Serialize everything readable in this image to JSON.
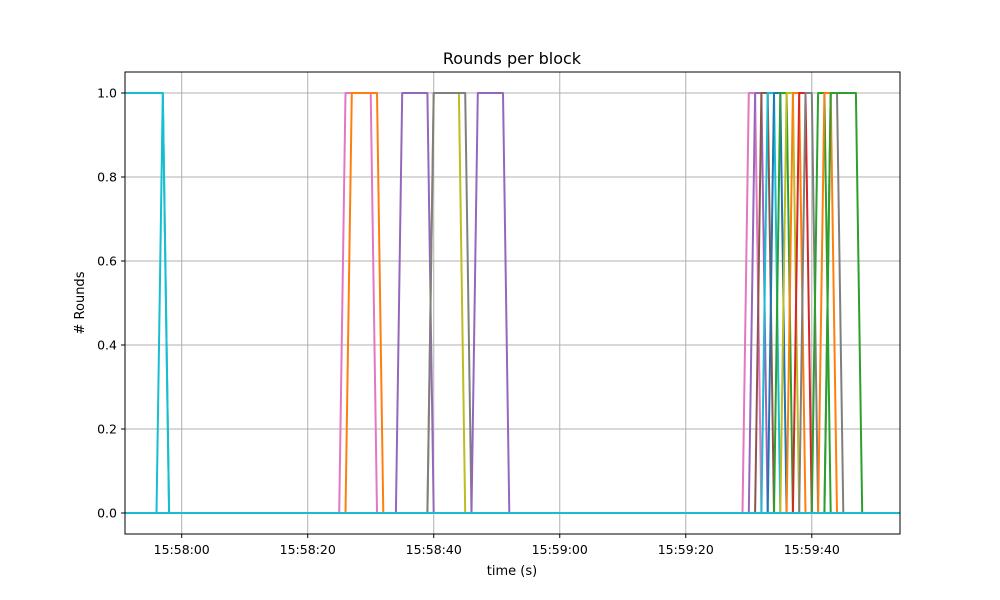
{
  "chart_data": {
    "type": "line",
    "title": "Rounds per block",
    "xlabel": "time (s)",
    "ylabel": "# Rounds",
    "x_unit": "time of day (HH:MM:SS)",
    "xlim": [
      "15:57:51",
      "15:59:54"
    ],
    "ylim": [
      -0.05,
      1.05
    ],
    "xticks": [
      "15:58:00",
      "15:58:20",
      "15:58:40",
      "15:59:00",
      "15:59:20",
      "15:59:40"
    ],
    "yticks": [
      "0.0",
      "0.2",
      "0.4",
      "0.6",
      "0.8",
      "1.0"
    ],
    "grid": true,
    "legend": "none",
    "series": [
      {
        "color": "#17becf",
        "x": [
          "15:57:51",
          "15:57:56",
          "15:57:57",
          "15:57:58",
          "15:58:01",
          "15:59:54"
        ],
        "y": [
          1,
          1,
          1,
          0,
          0,
          0
        ]
      },
      {
        "color": "#17becf",
        "x": [
          "15:57:51",
          "15:57:56",
          "15:57:57",
          "15:57:58",
          "15:59:54"
        ],
        "y": [
          0,
          0,
          1,
          0,
          0
        ]
      },
      {
        "color": "#e377c2",
        "x": [
          "15:57:51",
          "15:58:25",
          "15:58:26",
          "15:58:30",
          "15:58:31",
          "15:59:54"
        ],
        "y": [
          0,
          0,
          1,
          1,
          0,
          0
        ]
      },
      {
        "color": "#ff7f0e",
        "x": [
          "15:57:51",
          "15:58:26",
          "15:58:27",
          "15:58:31",
          "15:58:32",
          "15:59:54"
        ],
        "y": [
          0,
          0,
          1,
          1,
          0,
          0
        ]
      },
      {
        "color": "#9467bd",
        "x": [
          "15:57:51",
          "15:58:34",
          "15:58:35",
          "15:58:39",
          "15:58:40",
          "15:59:54"
        ],
        "y": [
          0,
          0,
          1,
          1,
          0,
          0
        ]
      },
      {
        "color": "#bcbd22",
        "x": [
          "15:57:51",
          "15:58:39",
          "15:58:40",
          "15:58:44",
          "15:58:45",
          "15:59:54"
        ],
        "y": [
          0,
          0,
          1,
          1,
          0,
          0
        ]
      },
      {
        "color": "#7f7f7f",
        "x": [
          "15:57:51",
          "15:58:39",
          "15:58:40",
          "15:58:45",
          "15:58:46",
          "15:59:54"
        ],
        "y": [
          0,
          0,
          1,
          1,
          0,
          0
        ]
      },
      {
        "color": "#9467bd",
        "x": [
          "15:57:51",
          "15:58:46",
          "15:58:47",
          "15:58:51",
          "15:58:52",
          "15:59:54"
        ],
        "y": [
          0,
          0,
          1,
          1,
          0,
          0
        ]
      },
      {
        "color": "#e377c2",
        "x": [
          "15:57:51",
          "15:59:29",
          "15:59:30",
          "15:59:31",
          "15:59:32",
          "15:59:54"
        ],
        "y": [
          0,
          0,
          1,
          1,
          0,
          0
        ]
      },
      {
        "color": "#9467bd",
        "x": [
          "15:57:51",
          "15:59:30",
          "15:59:31",
          "15:59:32",
          "15:59:33",
          "15:59:54"
        ],
        "y": [
          0,
          0,
          1,
          1,
          0,
          0
        ]
      },
      {
        "color": "#8c564b",
        "x": [
          "15:57:51",
          "15:59:31",
          "15:59:32",
          "15:59:33",
          "15:59:34",
          "15:59:54"
        ],
        "y": [
          0,
          0,
          1,
          1,
          0,
          0
        ]
      },
      {
        "color": "#17becf",
        "x": [
          "15:57:51",
          "15:59:32",
          "15:59:33",
          "15:59:34",
          "15:59:35",
          "15:59:54"
        ],
        "y": [
          0,
          0,
          1,
          1,
          0,
          0
        ]
      },
      {
        "color": "#1f77b4",
        "x": [
          "15:57:51",
          "15:59:33",
          "15:59:34",
          "15:59:35",
          "15:59:36",
          "15:59:54"
        ],
        "y": [
          0,
          0,
          1,
          1,
          0,
          0
        ]
      },
      {
        "color": "#2ca02c",
        "x": [
          "15:57:51",
          "15:59:34",
          "15:59:35",
          "15:59:36",
          "15:59:37",
          "15:59:54"
        ],
        "y": [
          0,
          0,
          1,
          1,
          0,
          0
        ]
      },
      {
        "color": "#bcbd22",
        "x": [
          "15:57:51",
          "15:59:35",
          "15:59:36",
          "15:59:37",
          "15:59:38",
          "15:59:54"
        ],
        "y": [
          0,
          0,
          1,
          1,
          0,
          0
        ]
      },
      {
        "color": "#ff7f0e",
        "x": [
          "15:57:51",
          "15:59:36",
          "15:59:37",
          "15:59:38",
          "15:59:39",
          "15:59:54"
        ],
        "y": [
          0,
          0,
          1,
          1,
          0,
          0
        ]
      },
      {
        "color": "#d62728",
        "x": [
          "15:57:51",
          "15:59:37",
          "15:59:38",
          "15:59:39",
          "15:59:40",
          "15:59:54"
        ],
        "y": [
          0,
          0,
          1,
          1,
          0,
          0
        ]
      },
      {
        "color": "#7f7f7f",
        "x": [
          "15:57:51",
          "15:59:38",
          "15:59:39",
          "15:59:40",
          "15:59:41",
          "15:59:54"
        ],
        "y": [
          0,
          0,
          1,
          1,
          0,
          0
        ]
      },
      {
        "color": "#2ca02c",
        "x": [
          "15:57:51",
          "15:59:40",
          "15:59:41",
          "15:59:42",
          "15:59:43",
          "15:59:54"
        ],
        "y": [
          0,
          0,
          1,
          1,
          0,
          0
        ]
      },
      {
        "color": "#ff7f0e",
        "x": [
          "15:57:51",
          "15:59:41",
          "15:59:42",
          "15:59:43",
          "15:59:44",
          "15:59:54"
        ],
        "y": [
          0,
          0,
          1,
          1,
          0,
          0
        ]
      },
      {
        "color": "#7f7f7f",
        "x": [
          "15:57:51",
          "15:59:42",
          "15:59:43",
          "15:59:44",
          "15:59:45",
          "15:59:54"
        ],
        "y": [
          0,
          0,
          1,
          1,
          0,
          0
        ]
      },
      {
        "color": "#2ca02c",
        "x": [
          "15:57:51",
          "15:59:42",
          "15:59:43",
          "15:59:47",
          "15:59:48",
          "15:59:54"
        ],
        "y": [
          0,
          0,
          1,
          1,
          0,
          0
        ]
      },
      {
        "color": "#17becf",
        "x": [
          "15:57:51",
          "15:59:54"
        ],
        "y": [
          0,
          0
        ]
      }
    ]
  }
}
